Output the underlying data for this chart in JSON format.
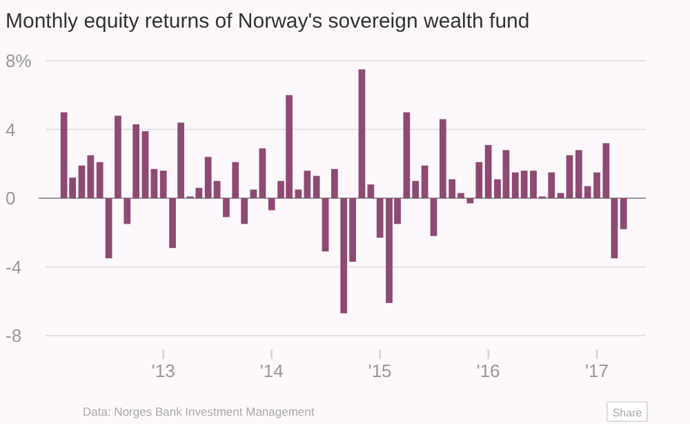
{
  "chart_data": {
    "type": "bar",
    "title": "Monthly equity returns of Norway's sovereign wealth fund",
    "x": [
      "2012-02",
      "2012-03",
      "2012-04",
      "2012-05",
      "2012-06",
      "2012-07",
      "2012-08",
      "2012-09",
      "2012-10",
      "2012-11",
      "2012-12",
      "2013-01",
      "2013-02",
      "2013-03",
      "2013-04",
      "2013-05",
      "2013-06",
      "2013-07",
      "2013-08",
      "2013-09",
      "2013-10",
      "2013-11",
      "2013-12",
      "2014-01",
      "2014-02",
      "2014-03",
      "2014-04",
      "2014-05",
      "2014-06",
      "2014-07",
      "2014-08",
      "2014-09",
      "2014-10",
      "2014-11",
      "2014-12",
      "2015-01",
      "2015-02",
      "2015-03",
      "2015-04",
      "2015-05",
      "2015-06",
      "2015-07",
      "2015-08",
      "2015-09",
      "2015-10",
      "2015-11",
      "2015-12",
      "2016-01",
      "2016-02",
      "2016-03",
      "2016-04",
      "2016-05",
      "2016-06",
      "2016-07",
      "2016-08",
      "2016-09",
      "2016-10",
      "2016-11",
      "2016-12",
      "2017-01",
      "2017-02",
      "2017-03",
      "2017-04"
    ],
    "values": [
      5.0,
      1.2,
      1.9,
      2.5,
      2.1,
      -3.5,
      4.8,
      -1.5,
      4.3,
      3.9,
      1.7,
      1.6,
      -2.9,
      4.4,
      0.1,
      0.6,
      2.4,
      1.0,
      -1.1,
      2.1,
      -1.5,
      0.5,
      2.9,
      -0.7,
      1.0,
      6.0,
      0.5,
      1.6,
      1.3,
      -3.1,
      1.7,
      -6.7,
      -3.7,
      7.5,
      0.8,
      -2.3,
      -6.1,
      -1.5,
      5.0,
      1.0,
      1.9,
      -2.2,
      4.6,
      1.1,
      0.3,
      -0.3,
      2.1,
      3.1,
      1.1,
      2.8,
      1.5,
      1.6,
      1.6,
      0.1,
      1.5,
      0.3,
      2.5,
      2.8,
      0.7,
      1.5,
      3.2,
      -3.5,
      -1.8
    ],
    "color": "#8e4a73",
    "xlim": [
      "2011-12-01",
      "2017-06-15"
    ],
    "xticks": [
      {
        "value": "2013-01",
        "label": "'13"
      },
      {
        "value": "2014-01",
        "label": "'14"
      },
      {
        "value": "2015-01",
        "label": "'15"
      },
      {
        "value": "2016-01",
        "label": "'16"
      },
      {
        "value": "2017-01",
        "label": "'17"
      }
    ],
    "ylim": [
      -8,
      8
    ],
    "yticks": [
      {
        "value": 8,
        "label": "8%"
      },
      4,
      0,
      -4,
      -8
    ],
    "grid": "y",
    "annotations": [
      "Data: Norges Bank Investment Management",
      "Share"
    ]
  }
}
